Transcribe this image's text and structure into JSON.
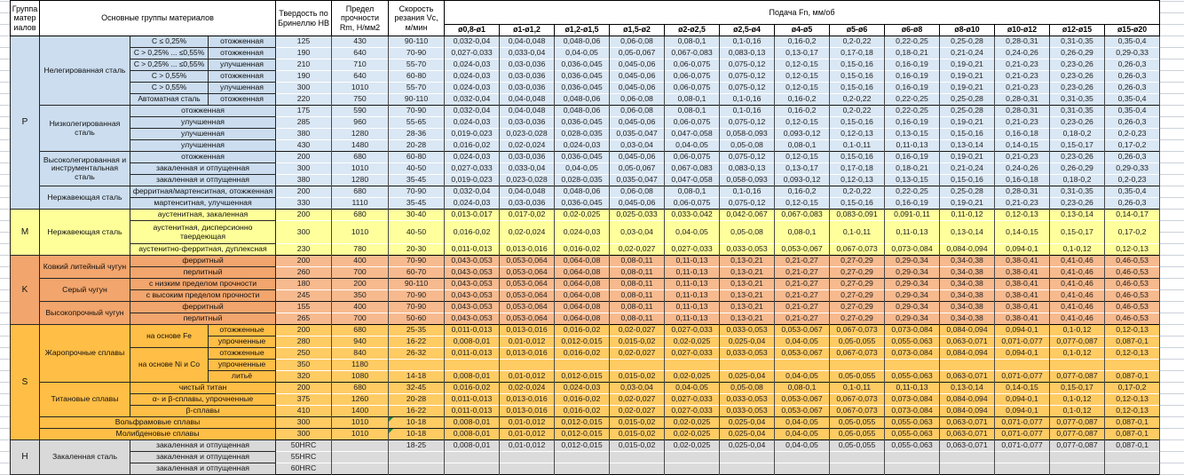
{
  "header": {
    "group_col": "Группа материалов",
    "materials_col": "Основные группы материалов",
    "hardness_col": "Твердость по Бринеллю HB",
    "strength_col": "Предел прочности Rm, Н/мм2",
    "speed_col": "Скорость резания Vc, м/мин",
    "feed_col": "Подача Fn, мм/об",
    "feed_columns": [
      "ø0,8-ø1",
      "ø1-ø1,2",
      "ø1,2-ø1,5",
      "ø1,5-ø2",
      "ø2-ø2,5",
      "ø2,5-ø4",
      "ø4-ø5",
      "ø5-ø6",
      "ø6-ø8",
      "ø8-ø10",
      "ø10-ø12",
      "ø12-ø15",
      "ø15-ø20"
    ]
  },
  "group_colors": {
    "P": {
      "left": "#CBDDEF",
      "data": "#DAE7F4"
    },
    "M": {
      "left": "#FFFF99",
      "data": "#FFFF9C"
    },
    "K": {
      "left": "#F2A56C",
      "data": "#F7BA8E"
    },
    "S": {
      "left": "#FFBE45",
      "data": "#FFCB63"
    },
    "H": {
      "left": "#D9D9D9",
      "data": "#DBDBDB"
    }
  },
  "note_color": "#1E8E3E",
  "feed_sets": {
    "A": [
      "0,032-0,04",
      "0,04-0,048",
      "0,048-0,06",
      "0,06-0,08",
      "0,08-0,1",
      "0,1-0,16",
      "0,16-0,2",
      "0,2-0,22",
      "0,22-0,25",
      "0,25-0,28",
      "0,28-0,31",
      "0,31-0,35",
      "0,35-0,4"
    ],
    "B": [
      "0,027-0,033",
      "0,033-0,04",
      "0,04-0,05",
      "0,05-0,067",
      "0,067-0,083",
      "0,083-0,13",
      "0,13-0,17",
      "0,17-0,18",
      "0,18-0,21",
      "0,21-0,24",
      "0,24-0,26",
      "0,26-0,29",
      "0,29-0,33"
    ],
    "C": [
      "0,024-0,03",
      "0,03-0,036",
      "0,036-0,045",
      "0,045-0,06",
      "0,06-0,075",
      "0,075-0,12",
      "0,12-0,15",
      "0,15-0,16",
      "0,16-0,19",
      "0,19-0,21",
      "0,21-0,23",
      "0,23-0,26",
      "0,26-0,3"
    ],
    "D": [
      "0,019-0,023",
      "0,023-0,028",
      "0,028-0,035",
      "0,035-0,047",
      "0,047-0,058",
      "0,058-0,093",
      "0,093-0,12",
      "0,12-0,13",
      "0,13-0,15",
      "0,15-0,16",
      "0,16-0,18",
      "0,18-0,2",
      "0,2-0,23"
    ],
    "E": [
      "0,016-0,02",
      "0,02-0,024",
      "0,024-0,03",
      "0,03-0,04",
      "0,04-0,05",
      "0,05-0,08",
      "0,08-0,1",
      "0,1-0,11",
      "0,11-0,13",
      "0,13-0,14",
      "0,14-0,15",
      "0,15-0,17",
      "0,17-0,2"
    ],
    "F": [
      "0,013-0,017",
      "0,017-0,02",
      "0,02-0,025",
      "0,025-0,033",
      "0,033-0,042",
      "0,042-0,067",
      "0,067-0,083",
      "0,083-0,091",
      "0,091-0,11",
      "0,11-0,12",
      "0,12-0,13",
      "0,13-0,14",
      "0,14-0,17"
    ],
    "G": [
      "0,011-0,013",
      "0,013-0,016",
      "0,016-0,02",
      "0,02-0,027",
      "0,027-0,033",
      "0,033-0,053",
      "0,053-0,067",
      "0,067-0,073",
      "0,073-0,084",
      "0,084-0,094",
      "0,094-0,1",
      "0,1-0,12",
      "0,12-0,13"
    ],
    "H": [
      "0,008-0,01",
      "0,01-0,012",
      "0,012-0,015",
      "0,015-0,02",
      "0,02-0,025",
      "0,025-0,04",
      "0,04-0,05",
      "0,05-0,055",
      "0,055-0,063",
      "0,063-0,071",
      "0,071-0,077",
      "0,077-0,087",
      "0,087-0,1"
    ],
    "K": [
      "0,043-0,053",
      "0,053-0,064",
      "0,064-0,08",
      "0,08-0,11",
      "0,11-0,13",
      "0,13-0,21",
      "0,21-0,27",
      "0,27-0,29",
      "0,29-0,34",
      "0,34-0,38",
      "0,38-0,41",
      "0,41-0,46",
      "0,46-0,53"
    ]
  },
  "groups": [
    {
      "letter": "P",
      "rows": [
        {
          "family": "Нелегированная сталь",
          "fspan": 6,
          "c1": "C ≤ 0,25%",
          "c2": "отожженная",
          "hb": "125",
          "rm": "430",
          "vc": "90-110",
          "f": "A"
        },
        {
          "c1": "C > 0,25% ... ≤0,55%",
          "c2": "отожженная",
          "hb": "190",
          "rm": "640",
          "vc": "70-90",
          "f": "B"
        },
        {
          "c1": "C > 0,25% ... ≤0,55%",
          "c2": "улучшенная",
          "hb": "210",
          "rm": "710",
          "vc": "55-70",
          "f": "C"
        },
        {
          "c1": "C > 0,55%",
          "c2": "отожженная",
          "hb": "190",
          "rm": "640",
          "vc": "60-80",
          "f": "C"
        },
        {
          "c1": "C > 0,55%",
          "c2": "улучшенная",
          "hb": "300",
          "rm": "1010",
          "vc": "55-70",
          "f": "C"
        },
        {
          "c1": "Автоматная сталь",
          "c2": "отожженная",
          "hb": "220",
          "rm": "750",
          "vc": "90-110",
          "f": "A"
        },
        {
          "family": "Низколегированная сталь",
          "fspan": 4,
          "cond": "отожженная",
          "hb": "175",
          "rm": "590",
          "vc": "70-90",
          "f": "A"
        },
        {
          "cond": "улучшенная",
          "hb": "285",
          "rm": "960",
          "vc": "55-65",
          "f": "C"
        },
        {
          "cond": "улучшенная",
          "hb": "380",
          "rm": "1280",
          "vc": "28-36",
          "f": "D"
        },
        {
          "cond": "улучшенная",
          "hb": "430",
          "rm": "1480",
          "vc": "20-28",
          "f": "E"
        },
        {
          "family": "Высоколегированная и инструментальная сталь",
          "fspan": 3,
          "cond": "отожженная",
          "hb": "200",
          "rm": "680",
          "vc": "60-80",
          "f": "C"
        },
        {
          "cond": "закаленная и отпущенная",
          "hb": "300",
          "rm": "1010",
          "vc": "40-50",
          "f": "B"
        },
        {
          "cond": "закаленная и отпущенная",
          "hb": "380",
          "rm": "1280",
          "vc": "35-45",
          "f": "D"
        },
        {
          "family": "Нержавеющая сталь",
          "fspan": 2,
          "cond": "ферритная/мартенситная, отожженная",
          "hb": "200",
          "rm": "680",
          "vc": "70-90",
          "f": "A"
        },
        {
          "cond": "мартенситная, улучшенная",
          "hb": "330",
          "rm": "1110",
          "vc": "35-45",
          "f": "C"
        }
      ]
    },
    {
      "letter": "M",
      "rows": [
        {
          "family": "Нержавеющая сталь",
          "fspan": 3,
          "cond": "аустенитная, закаленная",
          "hb": "200",
          "rm": "680",
          "vc": "30-40",
          "f": "F"
        },
        {
          "cond": "аустенитная, дисперсионно твердеющая",
          "tall": true,
          "hb": "300",
          "rm": "1010",
          "vc": "40-50",
          "f": "E"
        },
        {
          "cond": "аустенитно-ферритная, дуплексная",
          "hb": "230",
          "rm": "780",
          "vc": "20-30",
          "f": "G"
        }
      ]
    },
    {
      "letter": "K",
      "rows": [
        {
          "family": "Ковкий литейный чугун",
          "fspan": 2,
          "cond": "ферритный",
          "hb": "200",
          "rm": "400",
          "vc": "70-90",
          "f": "K"
        },
        {
          "cond": "перлитный",
          "hb": "260",
          "rm": "700",
          "vc": "60-70",
          "f": "K"
        },
        {
          "family": "Серый чугун",
          "fspan": 2,
          "cond": "с низким пределом прочности",
          "hb": "180",
          "rm": "200",
          "vc": "90-110",
          "f": "K"
        },
        {
          "cond": "с высоким пределом прочности",
          "hb": "245",
          "rm": "350",
          "vc": "70-90",
          "f": "K"
        },
        {
          "family": "Высокопрочный чугун",
          "fspan": 2,
          "cond": "ферритный",
          "hb": "155",
          "rm": "400",
          "vc": "70-90",
          "f": "K"
        },
        {
          "cond": "перлитный",
          "hb": "265",
          "rm": "700",
          "vc": "50-60",
          "f": "K"
        }
      ]
    },
    {
      "letter": "S",
      "rows": [
        {
          "family": "Жаропрочные сплавы",
          "fspan": 5,
          "c1": "на основе Fe",
          "c1span": 2,
          "c2": "отожженные",
          "hb": "200",
          "rm": "680",
          "vc": "25-35",
          "f": "G"
        },
        {
          "c2": "упрочненные",
          "hb": "280",
          "rm": "940",
          "vc": "16-22",
          "f": "H"
        },
        {
          "c1": "на основе Ni и Co",
          "c1span": 3,
          "c2": "отожженные",
          "hb": "250",
          "rm": "840",
          "vc": "26-32",
          "f": "G"
        },
        {
          "c2": "упрочненные",
          "hb": "350",
          "rm": "1180",
          "vc": "",
          "f": ""
        },
        {
          "c2": "литьё",
          "hb": "320",
          "rm": "1080",
          "vc": "14-18",
          "f": "H"
        },
        {
          "family": "Титановые сплавы",
          "fspan": 3,
          "cond": "чистый титан",
          "hb": "200",
          "rm": "680",
          "vc": "32-45",
          "f": "E"
        },
        {
          "cond": "α- и β-сплавы, упрочненные",
          "hb": "375",
          "rm": "1260",
          "vc": "20-28",
          "f": "G"
        },
        {
          "cond": "β-сплавы",
          "hb": "410",
          "rm": "1400",
          "vc": "16-22",
          "f": "G"
        },
        {
          "full": "Вольфрамовые сплавы",
          "hb": "300",
          "rm": "1010",
          "vc": "10-18",
          "note": true,
          "f": "H"
        },
        {
          "full": "Молибденовые сплавы",
          "hb": "300",
          "rm": "1010",
          "vc": "10-18",
          "note": true,
          "f": "H"
        }
      ]
    },
    {
      "letter": "H",
      "rows": [
        {
          "family": "Закаленная сталь",
          "fspan": 3,
          "cond": "закаленная и отпущенная",
          "hb": "50HRC",
          "rm": "",
          "vc": "18-25",
          "f": "H"
        },
        {
          "cond": "закаленная и отпущенная",
          "hb": "55HRC",
          "rm": "",
          "vc": "",
          "f": ""
        },
        {
          "cond": "закаленная и отпущенная",
          "hb": "60HRC",
          "rm": "",
          "vc": "",
          "f": ""
        }
      ]
    }
  ]
}
